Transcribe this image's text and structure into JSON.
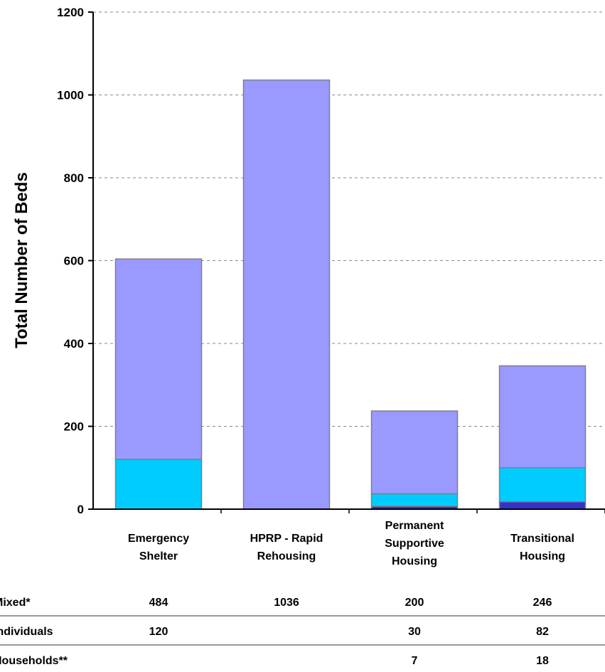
{
  "chart_data": {
    "type": "bar",
    "stacked": true,
    "title": "",
    "ylabel": "Total Number of Beds",
    "xlabel": "",
    "ylim": [
      0,
      1200
    ],
    "yticks": [
      "0",
      "200",
      "400",
      "600",
      "800",
      "1000",
      "1200"
    ],
    "grid": true,
    "categories": [
      [
        "Emergency",
        "Shelter"
      ],
      [
        "HPRP - Rapid",
        "Rehousing"
      ],
      [
        "Permanent",
        "Supportive",
        "Housing"
      ],
      [
        "Transitional",
        "Housing"
      ]
    ],
    "series": [
      {
        "name": "Households**",
        "color": "#3333cc",
        "values": [
          0,
          0,
          7,
          18
        ],
        "labels": [
          "",
          "",
          "7",
          "18"
        ]
      },
      {
        "name": "Individuals",
        "color": "#00ccff",
        "values": [
          120,
          0,
          30,
          82
        ],
        "labels": [
          "120",
          "",
          "30",
          "82"
        ]
      },
      {
        "name": "Mixed*",
        "color": "#9999ff",
        "values": [
          484,
          1036,
          200,
          246
        ],
        "labels": [
          "484",
          "1036",
          "200",
          "246"
        ]
      }
    ],
    "table_rows": [
      "Mixed*",
      "Individuals",
      "Households**"
    ]
  }
}
